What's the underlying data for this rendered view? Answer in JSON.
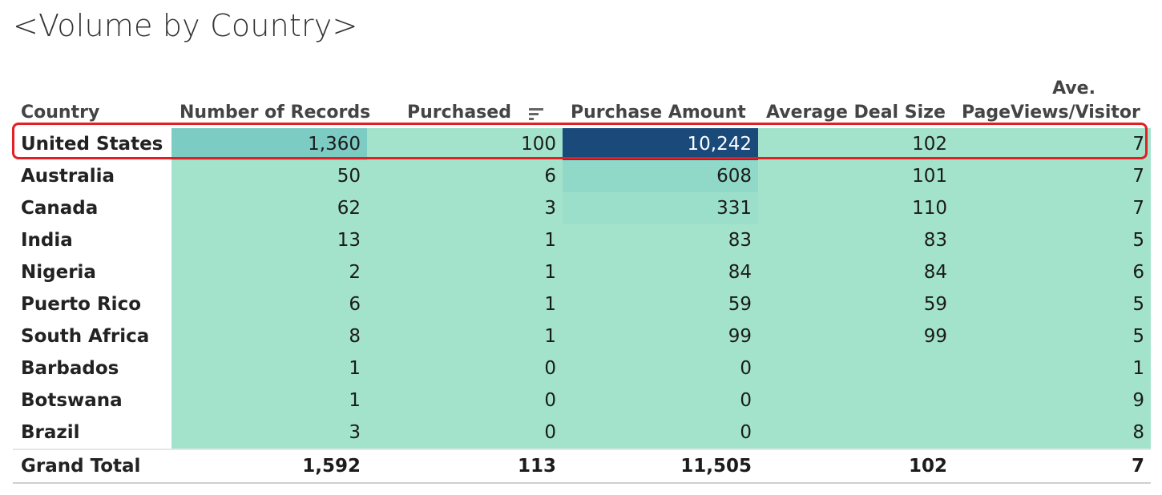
{
  "title": "<Volume by Country>",
  "headers": {
    "country": "Country",
    "records": "Number of Records",
    "purchased": "Purchased",
    "amount": "Purchase Amount",
    "deal": "Average Deal Size",
    "pageviews_line1": "Ave.",
    "pageviews_line2": "PageViews/Visitor"
  },
  "sort_icon": "sort-descending-icon",
  "rows": [
    {
      "country": "United States",
      "records": "1,360",
      "purchased": "100",
      "amount": "10,242",
      "deal": "102",
      "pageviews": "7"
    },
    {
      "country": "Australia",
      "records": "50",
      "purchased": "6",
      "amount": "608",
      "deal": "101",
      "pageviews": "7"
    },
    {
      "country": "Canada",
      "records": "62",
      "purchased": "3",
      "amount": "331",
      "deal": "110",
      "pageviews": "7"
    },
    {
      "country": "India",
      "records": "13",
      "purchased": "1",
      "amount": "83",
      "deal": "83",
      "pageviews": "5"
    },
    {
      "country": "Nigeria",
      "records": "2",
      "purchased": "1",
      "amount": "84",
      "deal": "84",
      "pageviews": "6"
    },
    {
      "country": "Puerto Rico",
      "records": "6",
      "purchased": "1",
      "amount": "59",
      "deal": "59",
      "pageviews": "5"
    },
    {
      "country": "South Africa",
      "records": "8",
      "purchased": "1",
      "amount": "99",
      "deal": "99",
      "pageviews": "5"
    },
    {
      "country": "Barbados",
      "records": "1",
      "purchased": "0",
      "amount": "0",
      "deal": "",
      "pageviews": "1"
    },
    {
      "country": "Botswana",
      "records": "1",
      "purchased": "0",
      "amount": "0",
      "deal": "",
      "pageviews": "9"
    },
    {
      "country": "Brazil",
      "records": "3",
      "purchased": "0",
      "amount": "0",
      "deal": "",
      "pageviews": "8"
    }
  ],
  "total": {
    "country": "Grand Total",
    "records": "1,592",
    "purchased": "113",
    "amount": "11,505",
    "deal": "102",
    "pageviews": "7"
  },
  "colors": {
    "base_cell": "#a3e3cc",
    "max_cell": "#1a4a7a",
    "highlight_border": "#e31e24"
  }
}
